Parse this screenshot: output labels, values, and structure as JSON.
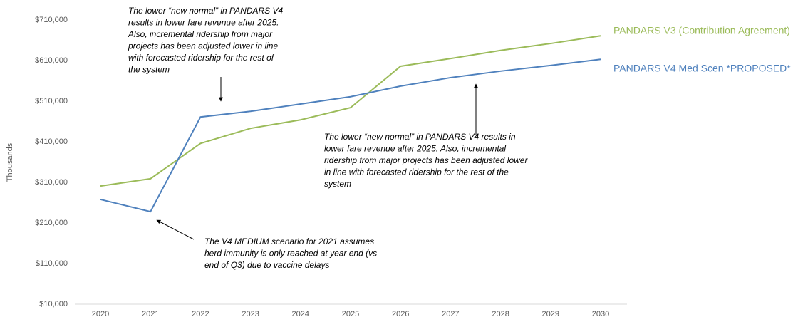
{
  "chart_data": {
    "type": "line",
    "y_label": "Thousands",
    "categories": [
      "2020",
      "2021",
      "2022",
      "2023",
      "2024",
      "2025",
      "2026",
      "2027",
      "2028",
      "2029",
      "2030"
    ],
    "series": [
      {
        "name": "PANDARS V3 (Contribution Agreement)",
        "color": "#9bbb59",
        "values": [
          301000,
          319000,
          406000,
          443000,
          464000,
          494000,
          596000,
          615000,
          635000,
          652000,
          671000
        ]
      },
      {
        "name": "PANDARS V4 Med Scen *PROPOSED*",
        "color": "#4f81bd",
        "values": [
          268000,
          238000,
          471000,
          485000,
          503000,
          521000,
          547000,
          568000,
          584000,
          598000,
          613000
        ]
      }
    ],
    "ylim": [
      10000,
      710000
    ],
    "yticks": [
      {
        "value": 10000,
        "label": "$10,000"
      },
      {
        "value": 110000,
        "label": "$110,000"
      },
      {
        "value": 210000,
        "label": "$210,000"
      },
      {
        "value": 310000,
        "label": "$310,000"
      },
      {
        "value": 410000,
        "label": "$410,000"
      },
      {
        "value": 510000,
        "label": "$510,000"
      },
      {
        "value": 610000,
        "label": "$610,000"
      },
      {
        "value": 710000,
        "label": "$710,000"
      }
    ],
    "annotations": [
      {
        "text": [
          "The lower “new normal” in PANDARS V4",
          "results in lower fare revenue after 2025.",
          "Also, incremental ridership from major",
          "projects has been adjusted lower in line",
          "with forecasted ridership for the rest of",
          "the system"
        ]
      },
      {
        "text": [
          "The lower “new normal” in PANDARS V4 results in",
          "lower fare revenue after 2025. Also, incremental",
          "ridership from major projects has been adjusted lower",
          "in line with forecasted ridership for the rest of the",
          "system"
        ]
      },
      {
        "text": [
          "The V4 MEDIUM scenario for 2021 assumes",
          "herd immunity is only reached at year end (vs",
          "end of Q3) due to vaccine delays"
        ]
      }
    ]
  }
}
